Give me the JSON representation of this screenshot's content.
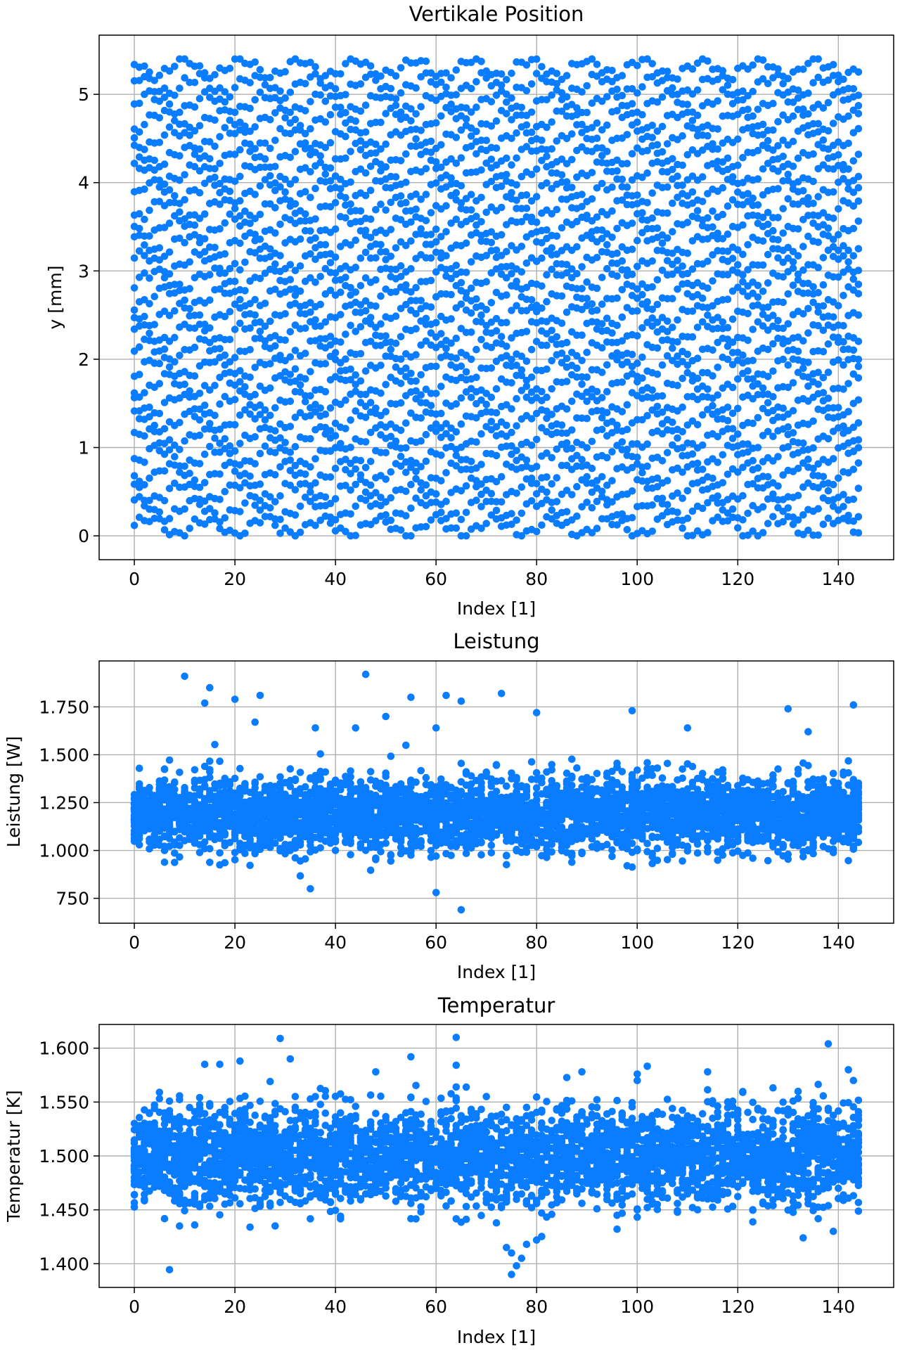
{
  "chart_data": [
    {
      "type": "scatter",
      "title": "Vertikale Position",
      "xlabel": "Index [1]",
      "ylabel": "y [mm]",
      "xlim": [
        -7,
        151
      ],
      "ylim": [
        -0.27,
        5.67
      ],
      "xticks": [
        0,
        20,
        40,
        60,
        80,
        100,
        120,
        140
      ],
      "xtick_labels": [
        "0",
        "20",
        "40",
        "60",
        "80",
        "100",
        "120",
        "140"
      ],
      "yticks": [
        0,
        1,
        2,
        3,
        4,
        5
      ],
      "ytick_labels": [
        "0",
        "1",
        "2",
        "3",
        "4",
        "5"
      ],
      "grid": true,
      "color": "#0a7cff",
      "distribution": {
        "x_range": [
          0,
          144
        ],
        "columns": 145,
        "points_per_column": 27,
        "y_range": [
          0,
          5.4
        ],
        "pattern": "wavy stripes"
      }
    },
    {
      "type": "scatter",
      "title": "Leistung",
      "xlabel": "Index [1]",
      "ylabel": "Leistung [W]",
      "xlim": [
        -7,
        151
      ],
      "ylim": [
        620,
        1990
      ],
      "xticks": [
        0,
        20,
        40,
        60,
        80,
        100,
        120,
        140
      ],
      "xtick_labels": [
        "0",
        "20",
        "40",
        "60",
        "80",
        "100",
        "120",
        "140"
      ],
      "yticks": [
        750,
        1000,
        1250,
        1500,
        1750
      ],
      "ytick_labels": [
        "750",
        "1.000",
        "1.250",
        "1.500",
        "1.750"
      ],
      "grid": true,
      "color": "#0a7cff",
      "distribution": {
        "x_range": [
          0,
          144
        ],
        "columns": 145,
        "points_per_column": 27,
        "mean": 1190,
        "std": 95,
        "min": 690,
        "max": 1920
      },
      "outliers": [
        [
          10,
          1910
        ],
        [
          14,
          1770
        ],
        [
          15,
          1850
        ],
        [
          25,
          1810
        ],
        [
          36,
          1640
        ],
        [
          44,
          1640
        ],
        [
          46,
          1920
        ],
        [
          50,
          1700
        ],
        [
          55,
          1800
        ],
        [
          60,
          1640
        ],
        [
          62,
          1810
        ],
        [
          65,
          690
        ],
        [
          73,
          1820
        ],
        [
          80,
          1720
        ],
        [
          99,
          1730
        ],
        [
          110,
          1640
        ],
        [
          130,
          1740
        ],
        [
          134,
          1620
        ],
        [
          143,
          1760
        ],
        [
          65,
          1780
        ],
        [
          35,
          800
        ],
        [
          60,
          780
        ],
        [
          24,
          1670
        ],
        [
          20,
          1790
        ]
      ]
    },
    {
      "type": "scatter",
      "title": "Temperatur",
      "xlabel": "Index [1]",
      "ylabel": "Temperatur [K]",
      "xlim": [
        -7,
        151
      ],
      "ylim": [
        1.378,
        1.622
      ],
      "xticks": [
        0,
        20,
        40,
        60,
        80,
        100,
        120,
        140
      ],
      "xtick_labels": [
        "0",
        "20",
        "40",
        "60",
        "80",
        "100",
        "120",
        "140"
      ],
      "yticks": [
        1.4,
        1.45,
        1.5,
        1.55,
        1.6
      ],
      "ytick_labels": [
        "1.400",
        "1.450",
        "1.500",
        "1.550",
        "1.600"
      ],
      "grid": true,
      "color": "#0a7cff",
      "distribution": {
        "x_range": [
          0,
          144
        ],
        "columns": 145,
        "points_per_column": 27,
        "mean": 1.5,
        "std": 0.022,
        "min": 1.39,
        "max": 1.61
      },
      "outliers": [
        [
          29,
          1.609
        ],
        [
          64,
          1.61
        ],
        [
          138,
          1.604
        ],
        [
          21,
          1.588
        ],
        [
          31,
          1.59
        ],
        [
          55,
          1.592
        ],
        [
          142,
          1.58
        ],
        [
          75,
          1.39
        ],
        [
          76,
          1.398
        ],
        [
          77,
          1.405
        ],
        [
          75,
          1.41
        ],
        [
          74,
          1.415
        ],
        [
          78,
          1.418
        ],
        [
          80,
          1.422
        ],
        [
          133,
          1.424
        ],
        [
          139,
          1.43
        ],
        [
          9,
          1.435
        ],
        [
          28,
          1.435
        ],
        [
          14,
          1.585
        ],
        [
          17,
          1.585
        ],
        [
          48,
          1.578
        ],
        [
          89,
          1.578
        ],
        [
          100,
          1.576
        ],
        [
          114,
          1.578
        ],
        [
          143,
          1.57
        ]
      ]
    }
  ]
}
